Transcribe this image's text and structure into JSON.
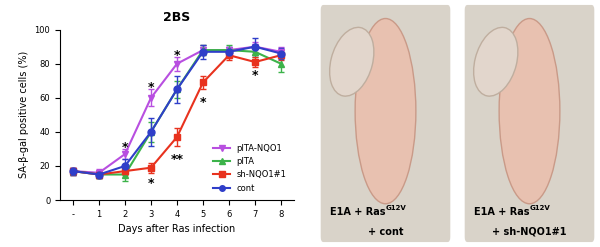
{
  "chart_data": {
    "type": "line",
    "title": "2BS",
    "x_label": "Days after Ras infection",
    "y_label": "SA-β-gal positive cells (%)",
    "categories": [
      "-",
      "1",
      "2",
      "3",
      "4",
      "5",
      "6",
      "7",
      "8"
    ],
    "ylim": [
      0,
      100
    ],
    "yticks": [
      0,
      20,
      40,
      60,
      80,
      100
    ],
    "legend": "lower right",
    "series": [
      {
        "name": "pITA-NQO1",
        "color": "#b84fe0",
        "marker": "v",
        "values": [
          17,
          16,
          27,
          60,
          80,
          88,
          88,
          90,
          87
        ],
        "errors": [
          2,
          2,
          3,
          5,
          4,
          3,
          2,
          3,
          3
        ]
      },
      {
        "name": "pITA",
        "color": "#3cb34a",
        "marker": "^",
        "values": [
          17,
          15,
          15,
          40,
          65,
          88,
          88,
          87,
          80
        ],
        "errors": [
          2,
          2,
          4,
          6,
          5,
          3,
          3,
          3,
          5
        ]
      },
      {
        "name": "sh-NQO1#1",
        "color": "#e8321e",
        "marker": "s",
        "values": [
          17,
          15,
          17,
          19,
          37,
          69,
          85,
          81,
          85
        ],
        "errors": [
          2,
          2,
          2,
          3,
          5,
          4,
          3,
          3,
          3
        ]
      },
      {
        "name": "cont",
        "color": "#2f3ec9",
        "marker": "o",
        "values": [
          17,
          15,
          20,
          40,
          65,
          87,
          87,
          90,
          86
        ],
        "errors": [
          2,
          2,
          4,
          8,
          8,
          4,
          3,
          5,
          3
        ]
      }
    ],
    "annotations": [
      {
        "x": "2",
        "y": 31,
        "text": "*"
      },
      {
        "x": "3",
        "y": 66,
        "text": "*"
      },
      {
        "x": "3",
        "y": 10,
        "text": "*"
      },
      {
        "x": "4",
        "y": 85,
        "text": "*"
      },
      {
        "x": "4",
        "y": 24,
        "text": "**"
      },
      {
        "x": "5",
        "y": 57,
        "text": "*"
      },
      {
        "x": "7",
        "y": 73,
        "text": "*"
      }
    ]
  },
  "photo_panels": [
    {
      "caption_base": "E1A + Ras",
      "caption_superscript": "G12V",
      "caption_line2": "+ cont"
    },
    {
      "caption_base": "E1A + Ras",
      "caption_superscript": "G12V",
      "caption_line2": "+ sh-NQO1#1"
    }
  ]
}
